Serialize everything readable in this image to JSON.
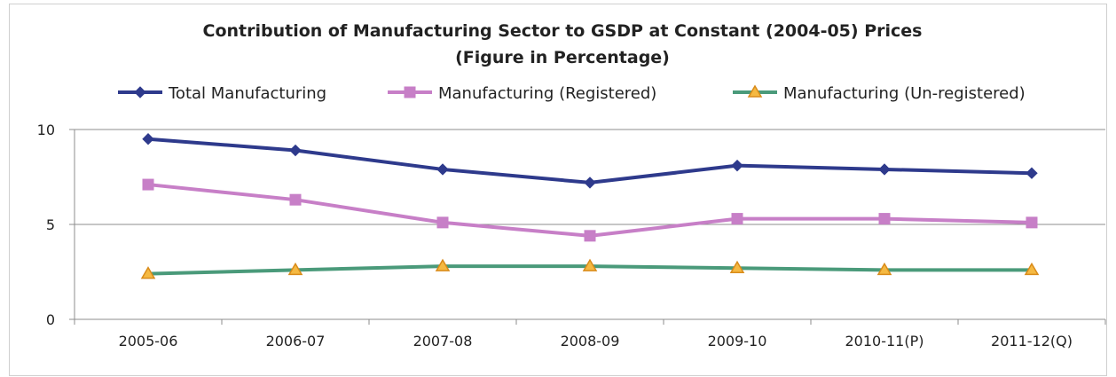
{
  "chart_data": {
    "type": "line",
    "title": "Contribution of Manufacturing Sector to GSDP at Constant (2004-05) Prices",
    "subtitle": "(Figure in Percentage)",
    "xlabel": "",
    "ylabel": "",
    "categories": [
      "2005-06",
      "2006-07",
      "2007-08",
      "2008-09",
      "2009-10",
      "2010-11(P)",
      "2011-12(Q)"
    ],
    "ylim": [
      0,
      10
    ],
    "yticks": [
      0,
      5,
      10
    ],
    "grid": true,
    "legend_position": "top",
    "series": [
      {
        "name": "Total Manufacturing",
        "color": "#2e3a8c",
        "marker": "diamond",
        "values": [
          9.5,
          8.9,
          7.9,
          7.2,
          8.1,
          7.9,
          7.7
        ]
      },
      {
        "name": "Manufacturing (Registered)",
        "color": "#c77fc7",
        "marker": "square",
        "values": [
          7.1,
          6.3,
          5.1,
          4.4,
          5.3,
          5.3,
          5.1
        ]
      },
      {
        "name": "Manufacturing (Un-registered)",
        "color": "#4a9a7a",
        "marker": "triangle",
        "marker_fill": "#f5b942",
        "values": [
          2.4,
          2.6,
          2.8,
          2.8,
          2.7,
          2.6,
          2.6
        ]
      }
    ]
  }
}
